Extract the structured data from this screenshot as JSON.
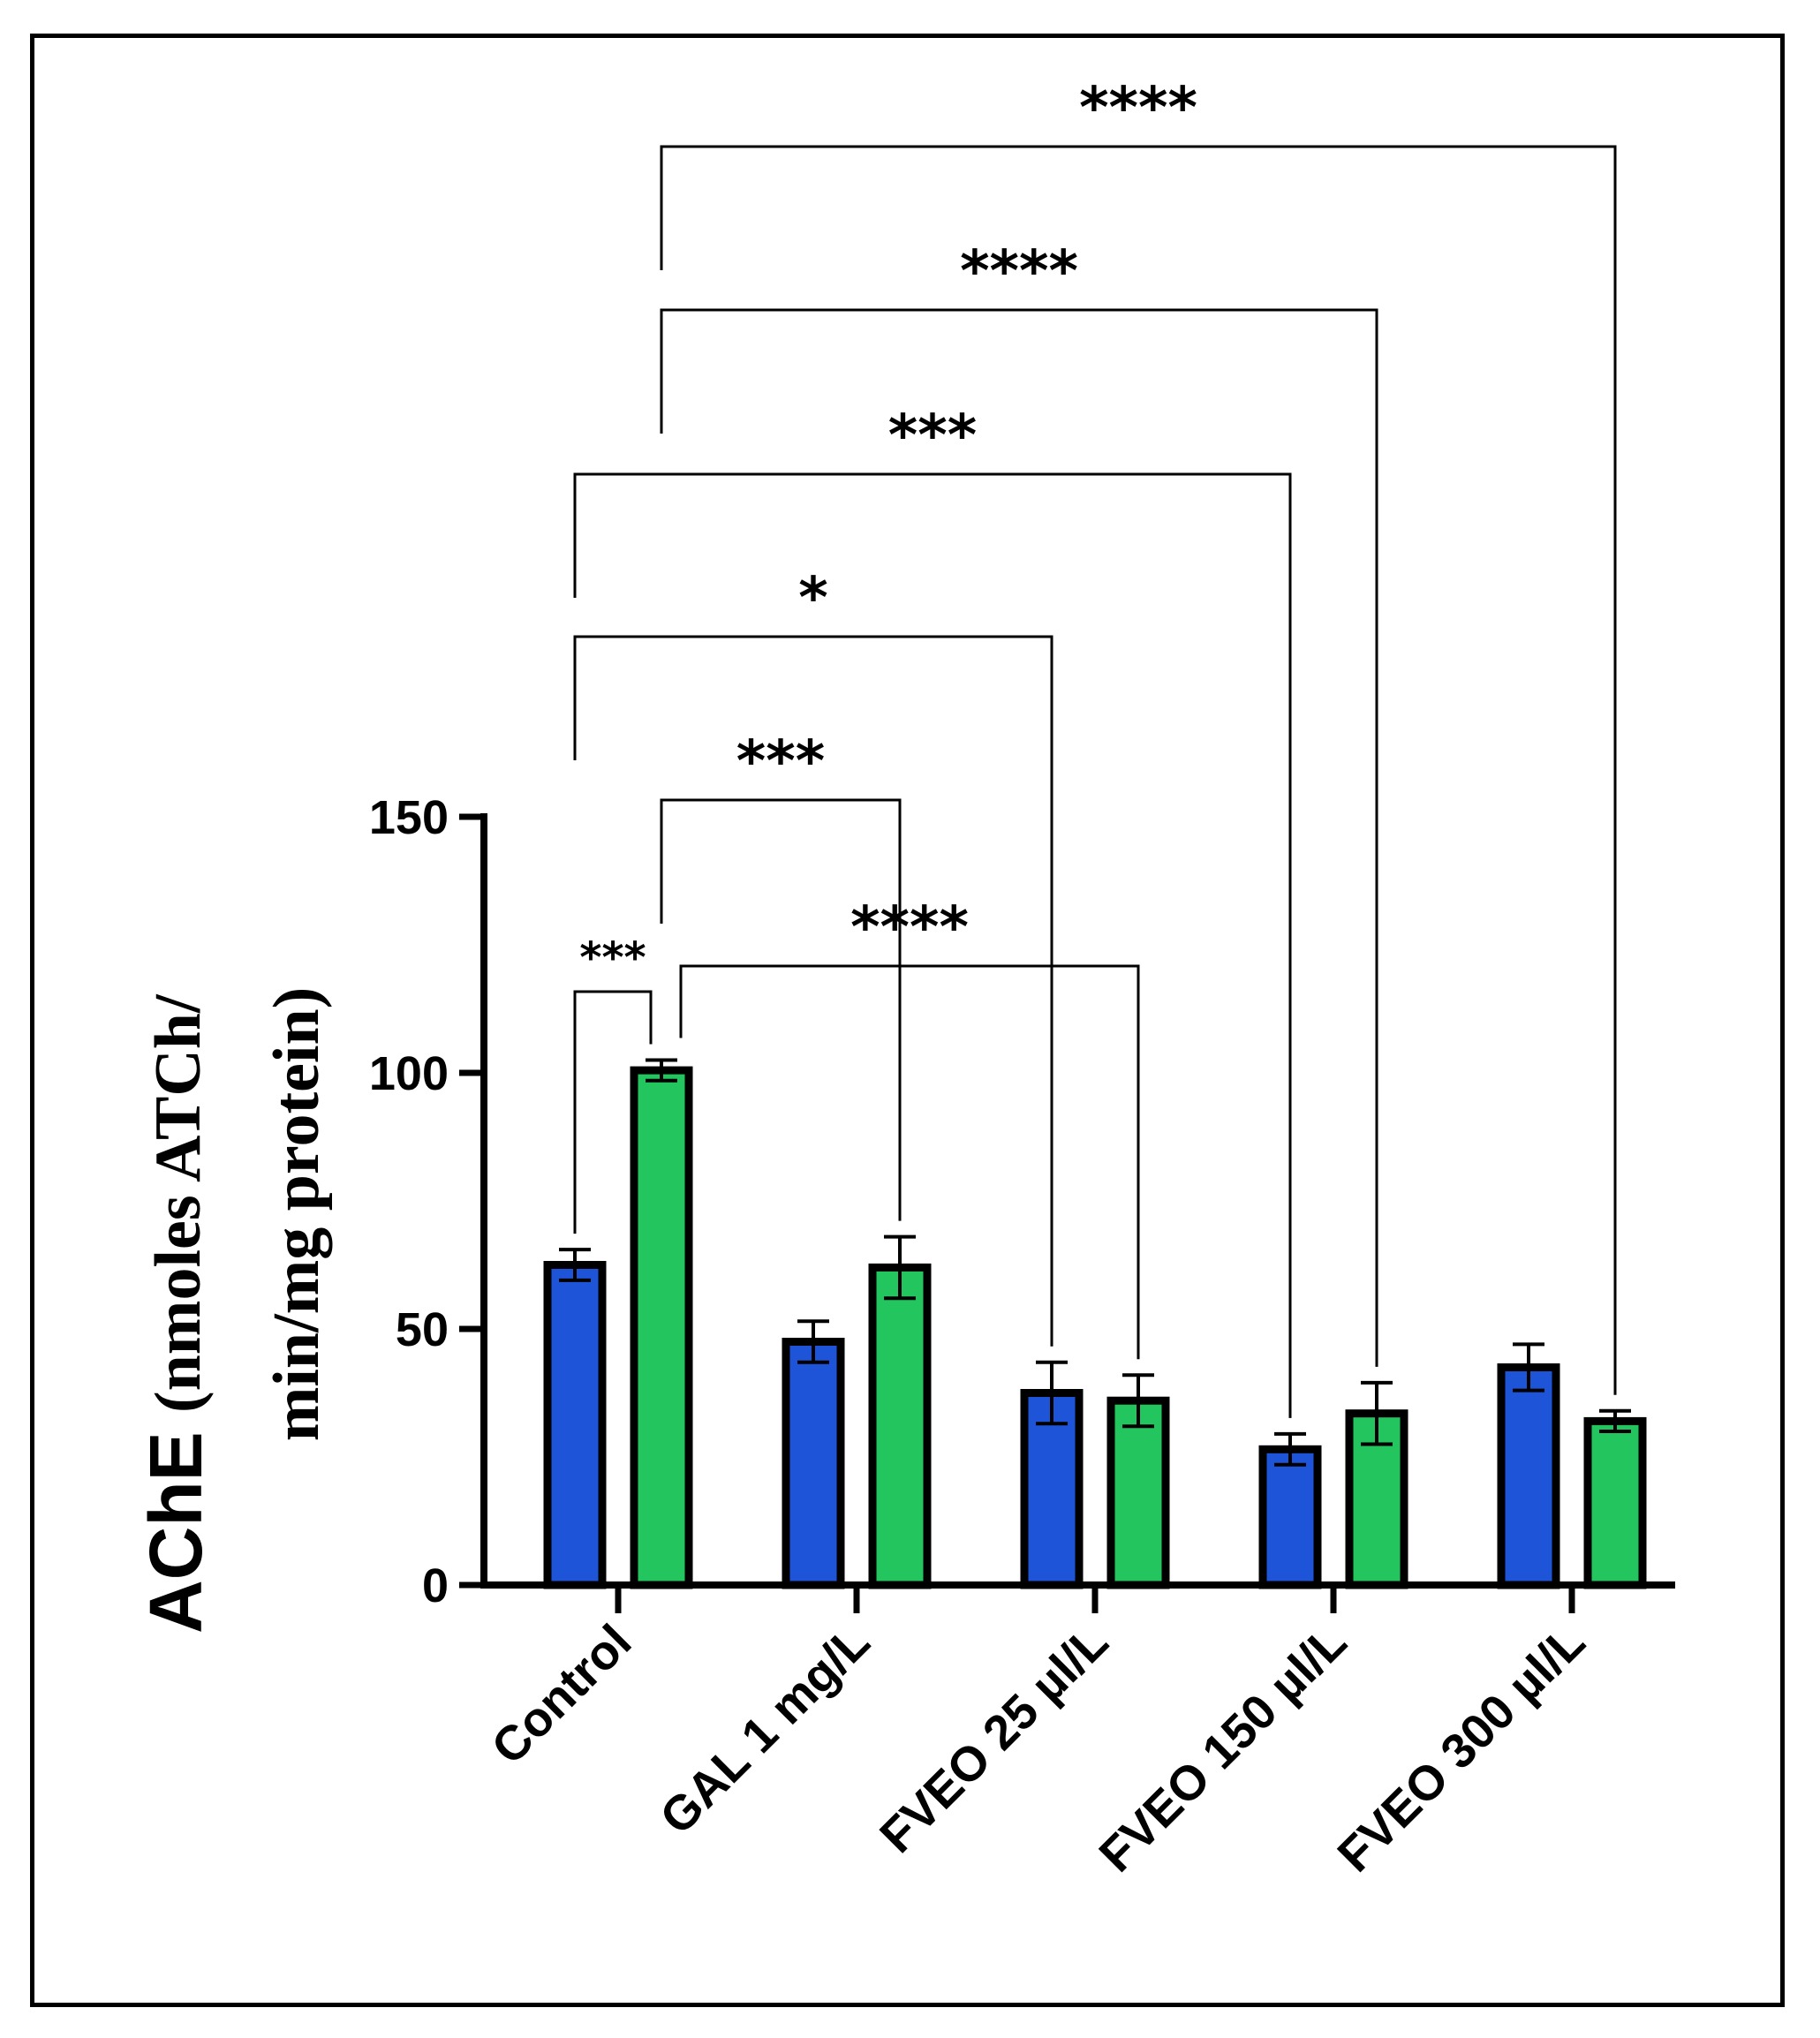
{
  "chart_data": {
    "type": "bar",
    "title": "",
    "ylabel": "AChE (nmoles ATCh/ min/mg protein)",
    "ylabel_lines": [
      "AChE",
      "(nmoles ATCh/",
      "min/mg protein)"
    ],
    "xlabel": "",
    "ylim": [
      0,
      150
    ],
    "yticks": [
      0,
      50,
      100,
      150
    ],
    "grid": false,
    "legend": "none",
    "categories": [
      "Control",
      "GAL 1 mg/L",
      "FVEO 25 µl/L",
      "FVEO 150 µl/L",
      "FVEO 300 µl/L"
    ],
    "series": [
      {
        "name": "series-blue",
        "color": "#1e55d8",
        "values": [
          62.5,
          47.5,
          37.5,
          26.5,
          42.5
        ],
        "errors": [
          3,
          4,
          6,
          3,
          4.5
        ]
      },
      {
        "name": "series-green",
        "color": "#22c55e",
        "values": [
          100.5,
          62,
          36,
          33.5,
          32
        ],
        "errors": [
          2,
          6,
          5,
          6,
          2
        ]
      }
    ],
    "comparisons": [
      {
        "from": [
          0,
          0
        ],
        "to": [
          0,
          1
        ],
        "label": "***",
        "level": 0
      },
      {
        "from": [
          0,
          1
        ],
        "to": [
          2,
          1
        ],
        "label": "****",
        "level": 1
      },
      {
        "from": [
          0,
          1
        ],
        "to": [
          1,
          1
        ],
        "label": "***",
        "level": 2
      },
      {
        "from": [
          0,
          0
        ],
        "to": [
          2,
          0
        ],
        "label": "*",
        "level": 3
      },
      {
        "from": [
          0,
          0
        ],
        "to": [
          3,
          0
        ],
        "label": "***",
        "level": 4
      },
      {
        "from": [
          0,
          1
        ],
        "to": [
          3,
          1
        ],
        "label": "****",
        "level": 5
      },
      {
        "from": [
          0,
          1
        ],
        "to": [
          4,
          1
        ],
        "label": "****",
        "level": 6
      }
    ]
  }
}
